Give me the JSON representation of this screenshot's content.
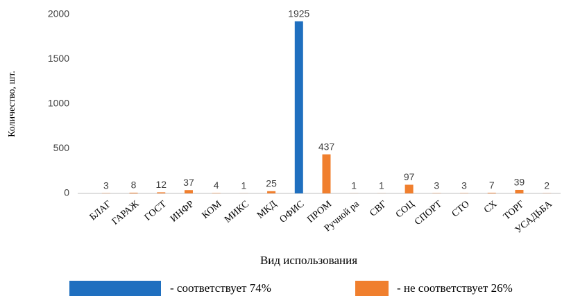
{
  "chart_data": {
    "type": "bar",
    "y_label": "Количество, шт.",
    "x_label": "Вид использования",
    "categories": [
      "БЛАГ",
      "ГАРАЖ",
      "ГОСТ",
      "ИНФР",
      "КОМ",
      "МИКС",
      "МКД",
      "ОФИС",
      "ПРОМ",
      "Ручной ра",
      "СВГ",
      "СОЦ",
      "СПОРТ",
      "СТО",
      "СХ",
      "ТОРГ",
      "УСАДЬБА"
    ],
    "series": [
      {
        "name": "- соответствует 74%",
        "color": "#1f6fbf",
        "values": [
          null,
          null,
          null,
          null,
          null,
          null,
          null,
          1925,
          null,
          null,
          null,
          null,
          null,
          null,
          null,
          null,
          null
        ]
      },
      {
        "name": "- не соответствует 26%",
        "color": "#f07f2e",
        "values": [
          3,
          8,
          12,
          37,
          4,
          1,
          25,
          null,
          437,
          1,
          1,
          97,
          3,
          3,
          7,
          39,
          2
        ]
      }
    ],
    "ylim": [
      0,
      2000
    ],
    "yticks": [
      0,
      500,
      1000,
      1500,
      2000
    ],
    "grid": false,
    "legend": "bottom"
  }
}
